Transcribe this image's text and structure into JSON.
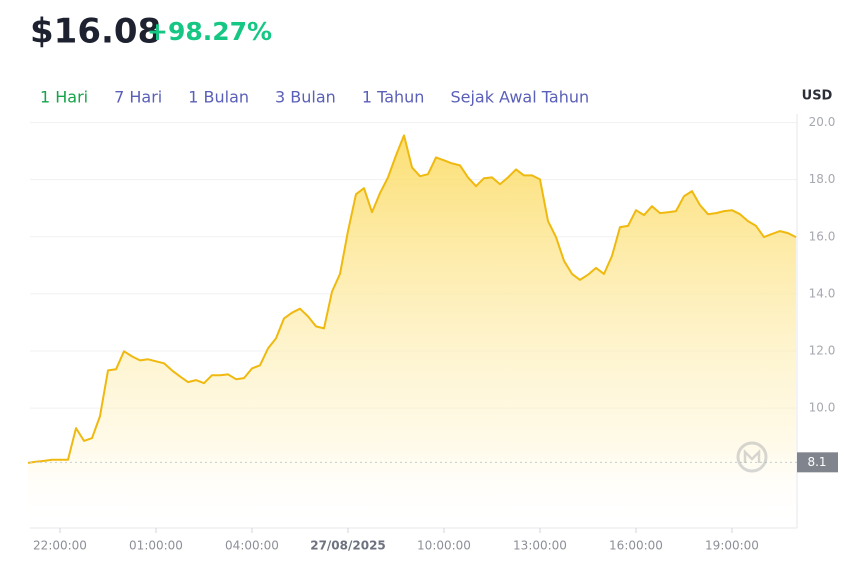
{
  "header": {
    "price": "$16.08",
    "change": "+98.27%"
  },
  "tabs": [
    "1 Hari",
    "7 Hari",
    "1 Bulan",
    "3 Bulan",
    "1 Tahun",
    "Sejak Awal Tahun"
  ],
  "chart_data": {
    "type": "area",
    "y_axis_label": "USD",
    "color": "#efb90f",
    "categories": [
      null,
      null,
      null,
      null,
      "22:00:00",
      null,
      null,
      null,
      null,
      null,
      null,
      null,
      null,
      null,
      null,
      null,
      "01:00:00",
      null,
      null,
      null,
      null,
      null,
      null,
      null,
      null,
      null,
      null,
      null,
      "04:00:00",
      null,
      null,
      null,
      null,
      null,
      null,
      null,
      null,
      null,
      null,
      null,
      "27/08/2025",
      null,
      null,
      null,
      null,
      null,
      null,
      null,
      null,
      null,
      null,
      null,
      "10:00:00",
      null,
      null,
      null,
      null,
      null,
      null,
      null,
      null,
      null,
      null,
      null,
      "13:00:00",
      null,
      null,
      null,
      null,
      null,
      null,
      null,
      null,
      null,
      null,
      null,
      "16:00:00",
      null,
      null,
      null,
      null,
      null,
      null,
      null,
      null,
      null,
      null,
      null,
      "19:00:00",
      null,
      null,
      null,
      null,
      null,
      null,
      null,
      null
    ],
    "values": [
      8.08,
      8.12,
      8.15,
      8.19,
      8.19,
      8.19,
      9.3,
      8.85,
      8.95,
      9.72,
      11.32,
      11.36,
      11.99,
      11.81,
      11.67,
      11.71,
      11.64,
      11.57,
      11.32,
      11.11,
      10.91,
      10.98,
      10.87,
      11.15,
      11.15,
      11.18,
      11.01,
      11.05,
      11.39,
      11.5,
      12.09,
      12.44,
      13.14,
      13.34,
      13.48,
      13.21,
      12.86,
      12.79,
      14.08,
      14.7,
      16.2,
      17.49,
      17.7,
      16.86,
      17.53,
      18.08,
      18.85,
      19.55,
      18.43,
      18.12,
      18.19,
      18.78,
      18.68,
      18.57,
      18.5,
      18.08,
      17.77,
      18.05,
      18.08,
      17.84,
      18.08,
      18.36,
      18.15,
      18.15,
      18.01,
      16.55,
      15.99,
      15.16,
      14.7,
      14.49,
      14.67,
      14.91,
      14.7,
      15.33,
      16.34,
      16.38,
      16.93,
      16.76,
      17.07,
      16.83,
      16.86,
      16.9,
      17.42,
      17.6,
      17.11,
      16.79,
      16.83,
      16.9,
      16.93,
      16.79,
      16.55,
      16.38,
      15.99,
      16.1,
      16.2,
      16.13,
      15.99
    ],
    "ylim": [
      5.8,
      20.3
    ],
    "yticks": [
      {
        "value": 10,
        "label": "10.0"
      },
      {
        "value": 12,
        "label": "12.0"
      },
      {
        "value": 14,
        "label": "14.0"
      },
      {
        "value": 16,
        "label": "16.0"
      },
      {
        "value": 18,
        "label": "18.0"
      },
      {
        "value": 20,
        "label": "20.0"
      }
    ],
    "reference_line": 8.1,
    "grid": true
  }
}
